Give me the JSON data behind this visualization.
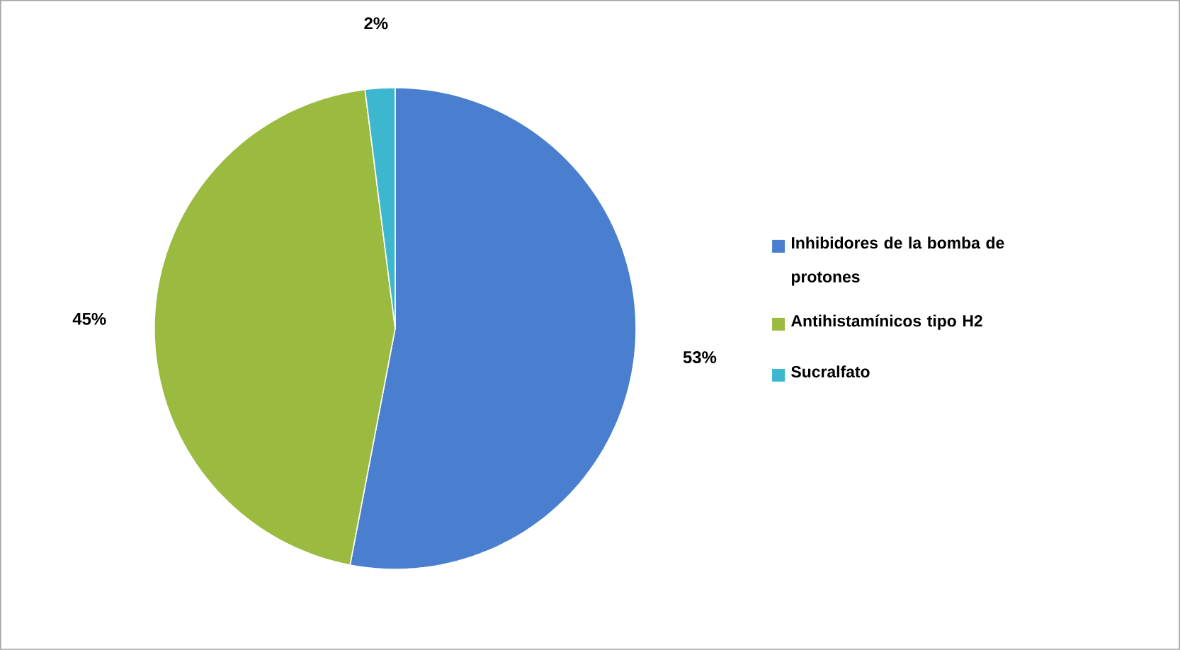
{
  "chart_data": {
    "type": "pie",
    "categories": [
      "Inhibidores de la bomba de protones",
      "Antihistamínicos tipo H2",
      "Sucralfato"
    ],
    "values": [
      53,
      45,
      2
    ],
    "colors": [
      "#4a7fd0",
      "#9bbb40",
      "#3cb7cf"
    ],
    "value_labels": [
      "53%",
      "45%",
      "2%"
    ],
    "legend": "right"
  }
}
